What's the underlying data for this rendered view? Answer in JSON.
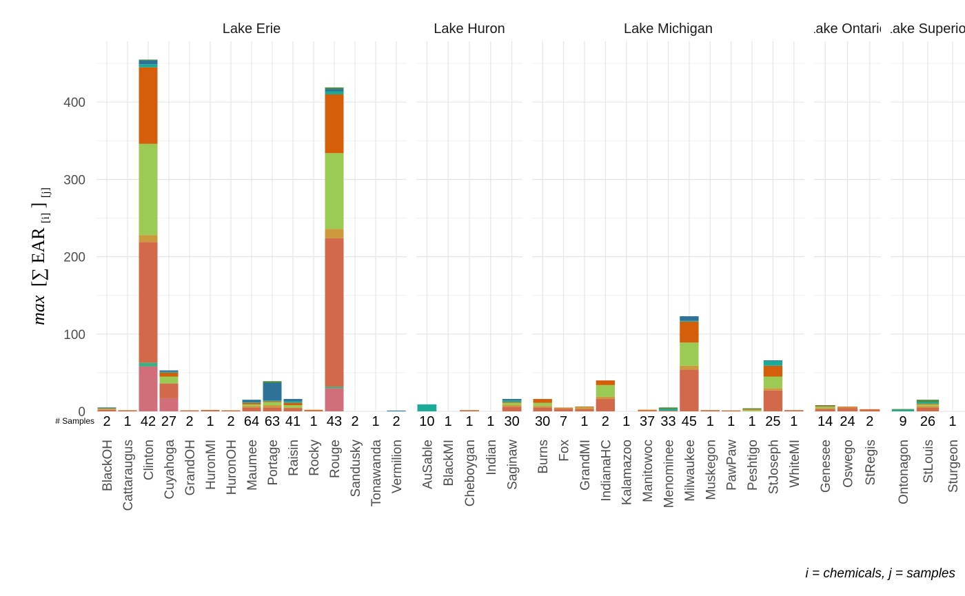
{
  "chart_data": {
    "type": "bar",
    "stacked": true,
    "faceted": true,
    "facet_by": "lake",
    "ylabel": {
      "prefix": "max",
      "body": "[∑ EAR",
      "sub": "[i]",
      "close": "]",
      "sub2": "[j]"
    },
    "caption": "i = chemicals, j = samples",
    "samples_label": "# Samples",
    "ylim": [
      0,
      470
    ],
    "yticks": [
      0,
      100,
      200,
      300,
      400
    ],
    "grid": true,
    "legend": "none",
    "palette": [
      "#D06E7A",
      "#3DAF80",
      "#D2694A",
      "#CC9A3C",
      "#9BCB55",
      "#D55E0A",
      "#1AAB98",
      "#2E7299",
      "#4C8A3D"
    ],
    "facets": [
      {
        "name": "Lake Erie",
        "sites": [
          {
            "site": "BlackOH",
            "n": "2",
            "stack": [
              0,
              0,
              2,
              0.8,
              0.6,
              0.8,
              0.5,
              0.3,
              0
            ]
          },
          {
            "site": "Cattaraugus",
            "n": "1",
            "stack": [
              0,
              0,
              0.9,
              0,
              0,
              0.5,
              0,
              0,
              0
            ]
          },
          {
            "site": "Clinton",
            "n": "42",
            "stack": [
              58,
              5,
              156,
              9,
              118,
              99,
              4,
              5,
              1
            ]
          },
          {
            "site": "Cuyahoga",
            "n": "27",
            "stack": [
              17,
              0,
              19,
              0,
              9,
              5,
              1,
              2,
              0
            ]
          },
          {
            "site": "GrandOH",
            "n": "2",
            "stack": [
              0,
              0,
              0.8,
              0,
              0,
              0.5,
              0,
              0,
              0
            ]
          },
          {
            "site": "HuronMI",
            "n": "1",
            "stack": [
              0,
              0,
              1.2,
              0,
              0,
              0.5,
              0,
              0,
              0
            ]
          },
          {
            "site": "HuronOH",
            "n": "2",
            "stack": [
              0,
              0,
              0.8,
              0,
              0,
              0.5,
              0,
              0,
              0
            ]
          },
          {
            "site": "Maumee",
            "n": "64",
            "stack": [
              0,
              0,
              5,
              2,
              2,
              2,
              1,
              3,
              0
            ]
          },
          {
            "site": "Portage",
            "n": "63",
            "stack": [
              0,
              0,
              5,
              3,
              4,
              1,
              1,
              23,
              2
            ]
          },
          {
            "site": "Raisin",
            "n": "41",
            "stack": [
              0,
              0,
              4,
              1,
              3,
              3,
              2,
              3,
              0
            ]
          },
          {
            "site": "Rocky",
            "n": "1",
            "stack": [
              0,
              0,
              1,
              0.5,
              0,
              0.5,
              0,
              0,
              0
            ]
          },
          {
            "site": "Rouge",
            "n": "43",
            "stack": [
              30,
              2,
              192,
              12,
              98,
              76,
              4,
              3,
              2
            ]
          },
          {
            "site": "Sandusky",
            "n": "2",
            "stack": [
              0,
              0,
              0,
              0,
              0,
              0,
              0,
              0,
              0
            ]
          },
          {
            "site": "Tonawanda",
            "n": "1",
            "stack": [
              0,
              0,
              0,
              0,
              0,
              0,
              0,
              0,
              0
            ]
          },
          {
            "site": "Vermilion",
            "n": "2",
            "stack": [
              0,
              0,
              0,
              0,
              0,
              0,
              0,
              1,
              0
            ]
          }
        ]
      },
      {
        "name": "Lake Huron",
        "sites": [
          {
            "site": "AuSable",
            "n": "10",
            "stack": [
              0,
              0,
              0,
              0,
              0,
              0,
              9,
              0,
              0
            ]
          },
          {
            "site": "BlackMI",
            "n": "1",
            "stack": [
              0,
              0,
              0,
              0,
              0,
              0,
              0,
              0,
              0
            ]
          },
          {
            "site": "Cheboygan",
            "n": "1",
            "stack": [
              0,
              0,
              1,
              0,
              0,
              0.5,
              0,
              0,
              0
            ]
          },
          {
            "site": "Indian",
            "n": "1",
            "stack": [
              0,
              0,
              0,
              0,
              0,
              0,
              0,
              0,
              0
            ]
          },
          {
            "site": "Saginaw",
            "n": "30",
            "stack": [
              0,
              0,
              6,
              2,
              3,
              1,
              2,
              2,
              0
            ]
          }
        ]
      },
      {
        "name": "Lake Michigan",
        "sites": [
          {
            "site": "Burns",
            "n": "30",
            "stack": [
              0,
              0,
              5,
              2,
              4,
              5,
              0,
              0,
              0
            ]
          },
          {
            "site": "Fox",
            "n": "7",
            "stack": [
              0,
              0,
              3,
              0.8,
              0,
              1,
              0,
              0,
              0
            ]
          },
          {
            "site": "GrandMI",
            "n": "1",
            "stack": [
              0,
              0,
              3,
              2,
              0.5,
              0.8,
              0,
              0,
              0
            ]
          },
          {
            "site": "IndianaHC",
            "n": "2",
            "stack": [
              0,
              0,
              16,
              3,
              15,
              6,
              0,
              0,
              0
            ]
          },
          {
            "site": "Kalamazoo",
            "n": "1",
            "stack": [
              0,
              0,
              0,
              0,
              0,
              0,
              0,
              0,
              0
            ]
          },
          {
            "site": "Manitowoc",
            "n": "37",
            "stack": [
              0,
              0,
              1,
              0.6,
              0,
              0.5,
              0,
              0,
              0
            ]
          },
          {
            "site": "Menominee",
            "n": "33",
            "stack": [
              0,
              0,
              1,
              0,
              0,
              0,
              2,
              0,
              2
            ]
          },
          {
            "site": "Milwaukee",
            "n": "45",
            "stack": [
              0,
              0,
              54,
              5,
              30,
              27,
              1,
              6,
              0
            ]
          },
          {
            "site": "Muskegon",
            "n": "1",
            "stack": [
              0,
              0,
              1,
              0,
              0,
              0.5,
              0,
              0,
              0
            ]
          },
          {
            "site": "PawPaw",
            "n": "1",
            "stack": [
              0,
              0,
              0.8,
              0,
              0,
              0.4,
              0,
              0,
              0
            ]
          },
          {
            "site": "Peshtigo",
            "n": "1",
            "stack": [
              0,
              0,
              0,
              0,
              2,
              1,
              0,
              0,
              1
            ]
          },
          {
            "site": "StJoseph",
            "n": "25",
            "stack": [
              0,
              0,
              27,
              3,
              15,
              14,
              6,
              1,
              0
            ]
          },
          {
            "site": "WhiteMI",
            "n": "1",
            "stack": [
              0,
              0,
              1,
              0,
              0,
              0.5,
              0,
              0,
              0
            ]
          }
        ]
      },
      {
        "name": "Lake Ontario",
        "sites": [
          {
            "site": "Genesee",
            "n": "14",
            "stack": [
              0,
              0,
              3,
              1,
              2,
              1,
              0,
              0,
              1
            ]
          },
          {
            "site": "Oswego",
            "n": "24",
            "stack": [
              0,
              0,
              4,
              1,
              0,
              1,
              0,
              0,
              0
            ]
          },
          {
            "site": "StRegis",
            "n": "2",
            "stack": [
              0,
              0,
              2,
              0,
              0,
              0.8,
              0,
              0,
              0
            ]
          }
        ]
      },
      {
        "name": "Lake Superior",
        "sites": [
          {
            "site": "Ontonagon",
            "n": "9",
            "stack": [
              0,
              0,
              0,
              0,
              0,
              0,
              2,
              0,
              1
            ]
          },
          {
            "site": "StLouis",
            "n": "26",
            "stack": [
              0,
              0,
              5,
              2,
              2,
              1,
              2,
              0,
              3
            ]
          },
          {
            "site": "Sturgeon",
            "n": "1",
            "stack": [
              0,
              0,
              0,
              0,
              0,
              0,
              0,
              0,
              0
            ]
          }
        ]
      }
    ]
  }
}
